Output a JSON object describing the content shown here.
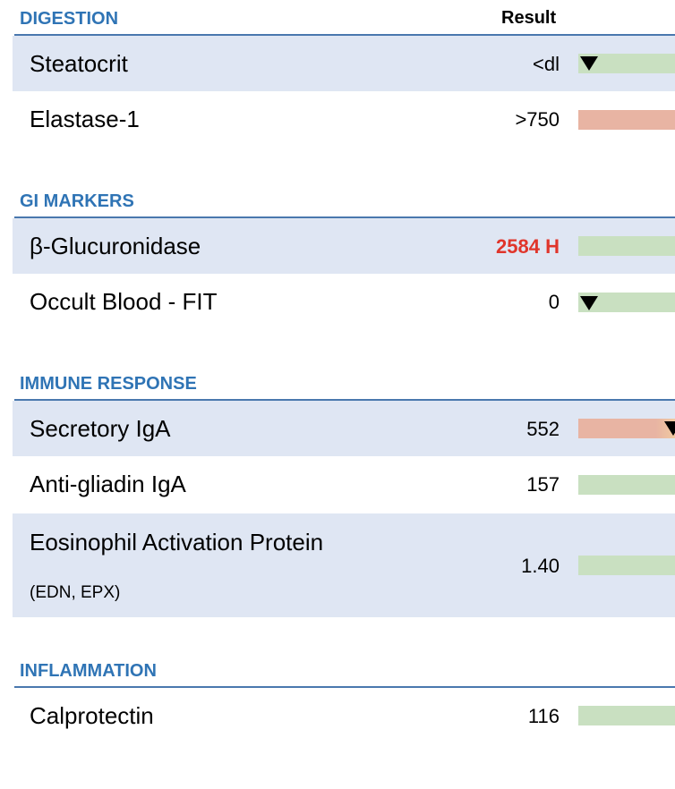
{
  "header": {
    "result_label": "Result"
  },
  "sections": {
    "digestion": {
      "title": "DIGESTION",
      "rows": [
        {
          "label": "Steatocrit",
          "value": "<dl",
          "status": "normal",
          "bar_color": "green",
          "marker": true
        },
        {
          "label": "Elastase-1",
          "value": ">750",
          "status": "normal",
          "bar_color": "red",
          "marker": false
        }
      ]
    },
    "gi_markers": {
      "title": "GI MARKERS",
      "rows": [
        {
          "label": "β-Glucuronidase",
          "value": "2584 H",
          "status": "high",
          "bar_color": "green",
          "marker": false
        },
        {
          "label": "Occult Blood - FIT",
          "value": "0",
          "status": "normal",
          "bar_color": "green",
          "marker": true
        }
      ]
    },
    "immune_response": {
      "title": "IMMUNE RESPONSE",
      "rows": [
        {
          "label": "Secretory IgA",
          "value": "552",
          "status": "normal",
          "bar_color": "red",
          "marker": true
        },
        {
          "label": "Anti-gliadin IgA",
          "value": "157",
          "status": "normal",
          "bar_color": "green",
          "marker": false
        },
        {
          "label": "Eosinophil Activation Protein",
          "sublabel": "(EDN, EPX)",
          "value": "1.40",
          "status": "normal",
          "bar_color": "green",
          "marker": false
        }
      ]
    },
    "inflammation": {
      "title": "INFLAMMATION",
      "rows": [
        {
          "label": "Calprotectin",
          "value": "116",
          "status": "normal",
          "bar_color": "green",
          "marker": false
        }
      ]
    }
  },
  "colors": {
    "section_title": "#2f74b5",
    "row_shade": "#dfe6f3",
    "bar_green": "#c9e0c1",
    "bar_red": "#e8b4a3",
    "high_value": "#e0352b"
  }
}
